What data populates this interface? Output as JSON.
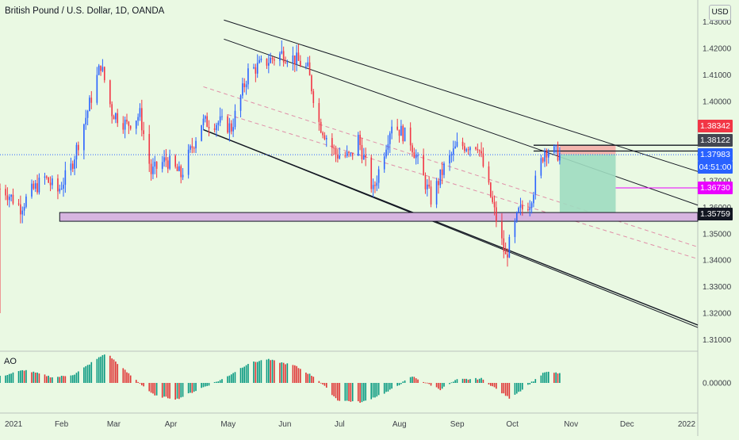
{
  "header": {
    "title": "British Pound / U.S. Dollar, 1D, OANDA",
    "currency": "USD"
  },
  "indicator": {
    "label": "AO"
  },
  "price_tags": [
    {
      "label": "1.38342",
      "color": "#f23645"
    },
    {
      "label": "1.38122",
      "color": "#434651"
    },
    {
      "label": "1.37983",
      "color": "#2962ff"
    },
    {
      "label": "04:51:00",
      "color": "#2962ff"
    },
    {
      "label": "1.36730",
      "color": "#ea00ff"
    },
    {
      "label": "1.35759",
      "color": "#131722"
    }
  ],
  "chart_data": [
    {
      "type": "candlestick",
      "title": "British Pound / U.S. Dollar, 1D, OANDA",
      "ylim": [
        1.305,
        1.435
      ],
      "y_ticks": [
        "1.43000",
        "1.42000",
        "1.41000",
        "1.40000",
        "1.37000",
        "1.36000",
        "1.35000",
        "1.34000",
        "1.33000",
        "1.32000",
        "1.31000"
      ],
      "x_ticks": [
        "2021",
        "Feb",
        "Mar",
        "Apr",
        "May",
        "Jun",
        "Jul",
        "Aug",
        "Sep",
        "Oct",
        "Nov",
        "Dec",
        "2022"
      ],
      "date_range": [
        "2021-01-01",
        "2022-01-10"
      ],
      "last_date": "2021-10-28",
      "close_anchors": [
        [
          "2021-01-01",
          1.367
        ],
        [
          "2021-01-04",
          1.366
        ],
        [
          "2021-01-12",
          1.36
        ],
        [
          "2021-01-18",
          1.366
        ],
        [
          "2021-01-25",
          1.371
        ],
        [
          "2021-02-01",
          1.366
        ],
        [
          "2021-02-08",
          1.375
        ],
        [
          "2021-02-16",
          1.394
        ],
        [
          "2021-02-24",
          1.414
        ],
        [
          "2021-03-02",
          1.396
        ],
        [
          "2021-03-10",
          1.391
        ],
        [
          "2021-03-17",
          1.395
        ],
        [
          "2021-03-23",
          1.373
        ],
        [
          "2021-03-31",
          1.378
        ],
        [
          "2021-04-08",
          1.372
        ],
        [
          "2021-04-19",
          1.392
        ],
        [
          "2021-04-29",
          1.392
        ],
        [
          "2021-05-05",
          1.39
        ],
        [
          "2021-05-14",
          1.411
        ],
        [
          "2021-05-24",
          1.415
        ],
        [
          "2021-06-01",
          1.418
        ],
        [
          "2021-06-08",
          1.416
        ],
        [
          "2021-06-15",
          1.412
        ],
        [
          "2021-06-21",
          1.392
        ],
        [
          "2021-06-30",
          1.38
        ],
        [
          "2021-07-08",
          1.379
        ],
        [
          "2021-07-12",
          1.386
        ],
        [
          "2021-07-20",
          1.366
        ],
        [
          "2021-07-30",
          1.392
        ],
        [
          "2021-08-09",
          1.385
        ],
        [
          "2021-08-20",
          1.363
        ],
        [
          "2021-08-27",
          1.375
        ],
        [
          "2021-09-03",
          1.383
        ],
        [
          "2021-09-14",
          1.384
        ],
        [
          "2021-09-21",
          1.364
        ],
        [
          "2021-09-29",
          1.341
        ],
        [
          "2021-10-06",
          1.358
        ],
        [
          "2021-10-12",
          1.362
        ],
        [
          "2021-10-20",
          1.382
        ],
        [
          "2021-10-28",
          1.38
        ]
      ],
      "extremes": {
        "low": {
          "date": "2021-01-01",
          "value": 1.32
        },
        "high": {
          "date": "2021-06-01",
          "value": 1.423
        }
      },
      "horizontal_levels": [
        1.38342,
        1.38122,
        1.3673,
        1.35759
      ],
      "support_zone": {
        "top": 1.358,
        "bottom": 1.3565,
        "from": "2021-02-02",
        "to": "2022-01-10"
      },
      "position_box": {
        "entry": 1.38,
        "stop": 1.3834,
        "target": 1.3576,
        "from": "2021-10-28",
        "to": "2021-11-27"
      },
      "channels": {
        "upper": [
          [
            "2021-05-01",
            1.4307
          ],
          [
            "2022-01-10",
            1.3735
          ]
        ],
        "middle": [
          [
            "2021-05-01",
            1.4235
          ],
          [
            "2022-01-10",
            1.3608
          ]
        ],
        "mid_dashed_1": [
          [
            "2021-04-20",
            1.4055
          ],
          [
            "2022-01-10",
            1.345
          ]
        ],
        "mid_dashed_2": [
          [
            "2021-05-03",
            1.395
          ],
          [
            "2022-01-10",
            1.3405
          ]
        ],
        "lower": [
          [
            "2021-04-20",
            1.3893
          ],
          [
            "2022-01-10",
            1.3155
          ]
        ]
      },
      "ao": {
        "ylim": [
          -0.035,
          0.035
        ],
        "tick": "0.00000",
        "anchors": [
          [
            "2021-01-01",
            0.006
          ],
          [
            "2021-01-14",
            0.012
          ],
          [
            "2021-01-30",
            0.005
          ],
          [
            "2021-02-10",
            0.008
          ],
          [
            "2021-02-20",
            0.02
          ],
          [
            "2021-02-27",
            0.028
          ],
          [
            "2021-03-10",
            0.01
          ],
          [
            "2021-03-25",
            -0.012
          ],
          [
            "2021-04-06",
            -0.015
          ],
          [
            "2021-04-20",
            -0.004
          ],
          [
            "2021-05-01",
            0.004
          ],
          [
            "2021-05-14",
            0.018
          ],
          [
            "2021-05-24",
            0.022
          ],
          [
            "2021-06-08",
            0.016
          ],
          [
            "2021-06-20",
            0.004
          ],
          [
            "2021-07-01",
            -0.016
          ],
          [
            "2021-07-14",
            -0.018
          ],
          [
            "2021-07-28",
            -0.008
          ],
          [
            "2021-08-10",
            0.006
          ],
          [
            "2021-08-25",
            -0.006
          ],
          [
            "2021-09-03",
            0.003
          ],
          [
            "2021-09-16",
            0.004
          ],
          [
            "2021-10-01",
            -0.014
          ],
          [
            "2021-10-08",
            -0.006
          ],
          [
            "2021-10-20",
            0.01
          ],
          [
            "2021-10-28",
            0.009
          ]
        ]
      }
    }
  ]
}
